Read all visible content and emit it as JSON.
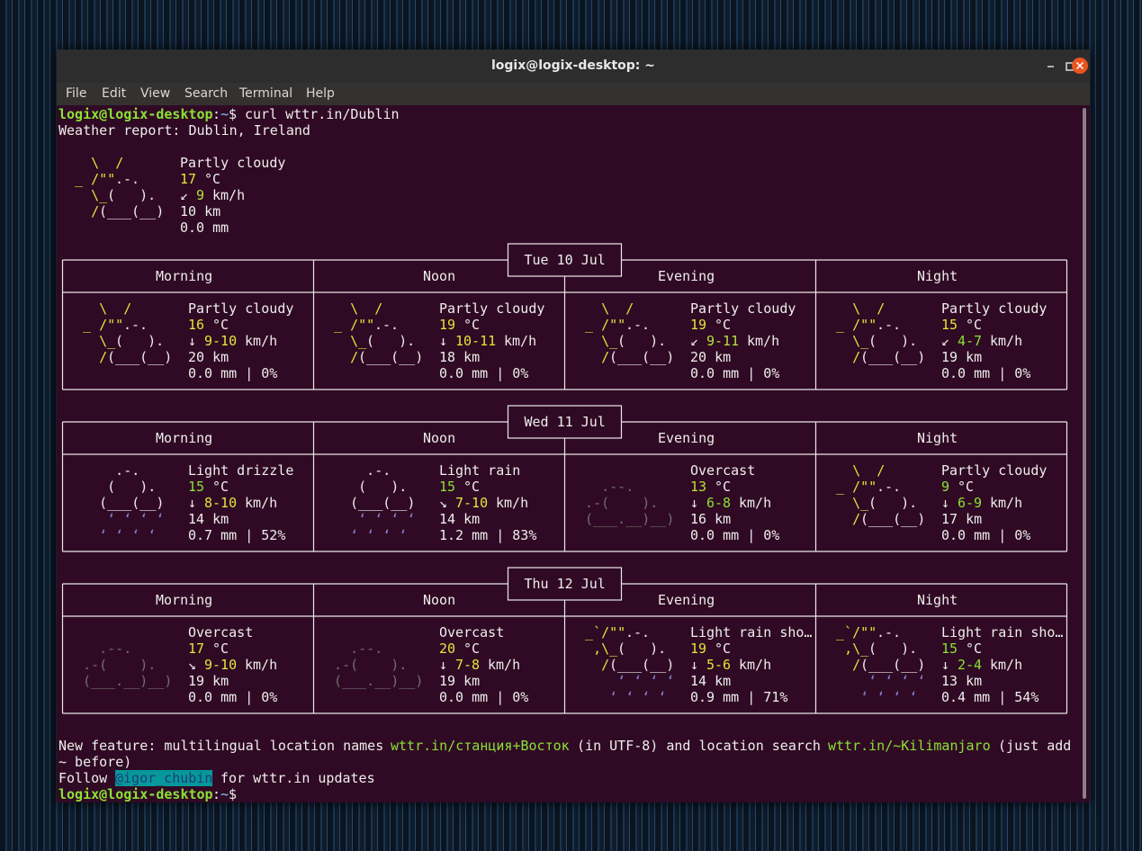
{
  "window": {
    "title": "logix@logix-desktop: ~",
    "menu": [
      "File",
      "Edit",
      "View",
      "Search",
      "Terminal",
      "Help"
    ]
  },
  "terminal": {
    "command_line": {
      "user_host": "logix@logix-desktop",
      "separator": ":",
      "path": "~",
      "symbol": "$",
      "command": "curl wttr.in/Dublin"
    },
    "report_title": "Weather report: Dublin, Ireland",
    "current": {
      "art": [
        [
          [
            "    \\  /",
            "#e4e43a"
          ]
        ],
        [
          [
            "  _ /\"\"",
            "#e4e43a"
          ],
          [
            ".-.",
            "#eeeeec"
          ]
        ],
        [
          [
            "    \\_",
            "#e4e43a"
          ],
          [
            "(   ).",
            "#eeeeec"
          ]
        ],
        [
          [
            "    /",
            "#e4e43a"
          ],
          [
            "(___(__)",
            "#eeeeec"
          ]
        ]
      ],
      "condition": "Partly cloudy",
      "temp": "17",
      "temp_color": "#e4e43a",
      "temp_unit": "°C",
      "wind_arrow": "↙",
      "wind": "9",
      "wind_color": "#b5e23a",
      "wind_unit": "km/h",
      "visibility": "10 km",
      "precipitation": "0.0 mm"
    },
    "days": [
      {
        "date": "Tue 10 Jul",
        "periods": [
          {
            "name": "Morning",
            "art": [
              [
                [
                  "    \\  /",
                  "#e4e43a"
                ]
              ],
              [
                [
                  "  _ /\"\"",
                  "#e4e43a"
                ],
                [
                  ".-.",
                  "#eeeeec"
                ]
              ],
              [
                [
                  "    \\_",
                  "#e4e43a"
                ],
                [
                  "(   ).",
                  "#eeeeec"
                ]
              ],
              [
                [
                  "    /",
                  "#e4e43a"
                ],
                [
                  "(___(__)",
                  "#eeeeec"
                ]
              ]
            ],
            "condition": "Partly cloudy",
            "temp": "16",
            "temp_color": "#e4e43a",
            "temp_unit": "°C",
            "wind_arrow": "↓",
            "wind": "9-10",
            "wind_color": "#e4e43a",
            "wind_unit": "km/h",
            "visibility": "20 km",
            "precipitation": "0.0 mm | 0%"
          },
          {
            "name": "Noon",
            "art": [
              [
                [
                  "    \\  /",
                  "#e4e43a"
                ]
              ],
              [
                [
                  "  _ /\"\"",
                  "#e4e43a"
                ],
                [
                  ".-.",
                  "#eeeeec"
                ]
              ],
              [
                [
                  "    \\_",
                  "#e4e43a"
                ],
                [
                  "(   ).",
                  "#eeeeec"
                ]
              ],
              [
                [
                  "    /",
                  "#e4e43a"
                ],
                [
                  "(___(__)",
                  "#eeeeec"
                ]
              ]
            ],
            "condition": "Partly cloudy",
            "temp": "19",
            "temp_color": "#e4e43a",
            "temp_unit": "°C",
            "wind_arrow": "↓",
            "wind": "10-11",
            "wind_color": "#e4e43a",
            "wind_unit": "km/h",
            "visibility": "18 km",
            "precipitation": "0.0 mm | 0%"
          },
          {
            "name": "Evening",
            "art": [
              [
                [
                  "    \\  /",
                  "#e4e43a"
                ]
              ],
              [
                [
                  "  _ /\"\"",
                  "#e4e43a"
                ],
                [
                  ".-.",
                  "#eeeeec"
                ]
              ],
              [
                [
                  "    \\_",
                  "#e4e43a"
                ],
                [
                  "(   ).",
                  "#eeeeec"
                ]
              ],
              [
                [
                  "    /",
                  "#e4e43a"
                ],
                [
                  "(___(__)",
                  "#eeeeec"
                ]
              ]
            ],
            "condition": "Partly cloudy",
            "temp": "19",
            "temp_color": "#e4e43a",
            "temp_unit": "°C",
            "wind_arrow": "↙",
            "wind": "9-11",
            "wind_color": "#b5e23a",
            "wind_unit": "km/h",
            "visibility": "20 km",
            "precipitation": "0.0 mm | 0%"
          },
          {
            "name": "Night",
            "art": [
              [
                [
                  "    \\  /",
                  "#e4e43a"
                ]
              ],
              [
                [
                  "  _ /\"\"",
                  "#e4e43a"
                ],
                [
                  ".-.",
                  "#eeeeec"
                ]
              ],
              [
                [
                  "    \\_",
                  "#e4e43a"
                ],
                [
                  "(   ).",
                  "#eeeeec"
                ]
              ],
              [
                [
                  "    /",
                  "#e4e43a"
                ],
                [
                  "(___(__)",
                  "#eeeeec"
                ]
              ]
            ],
            "condition": "Partly cloudy",
            "temp": "15",
            "temp_color": "#e4e43a",
            "temp_unit": "°C",
            "wind_arrow": "↙",
            "wind": "4-7",
            "wind_color": "#8ae234",
            "wind_unit": "km/h",
            "visibility": "19 km",
            "precipitation": "0.0 mm | 0%"
          }
        ]
      },
      {
        "date": "Wed 11 Jul",
        "periods": [
          {
            "name": "Morning",
            "art": [
              [
                [
                  "      .-.",
                  "#eeeeec"
                ]
              ],
              [
                [
                  "     (   ).",
                  "#eeeeec"
                ]
              ],
              [
                [
                  "    (___(__)",
                  "#eeeeec"
                ]
              ],
              [
                [
                  "     ‘ ‘ ‘ ‘",
                  "#8787d7"
                ]
              ],
              [
                [
                  "    ‘ ‘ ‘ ‘",
                  "#8787d7"
                ]
              ]
            ],
            "condition": "Light drizzle",
            "temp": "15",
            "temp_color": "#8ae234",
            "temp_unit": "°C",
            "wind_arrow": "↓",
            "wind": "8-10",
            "wind_color": "#e4e43a",
            "wind_unit": "km/h",
            "visibility": "14 km",
            "precipitation": "0.7 mm | 52%"
          },
          {
            "name": "Noon",
            "art": [
              [
                [
                  "      .-.",
                  "#eeeeec"
                ]
              ],
              [
                [
                  "     (   ).",
                  "#eeeeec"
                ]
              ],
              [
                [
                  "    (___(__)",
                  "#eeeeec"
                ]
              ],
              [
                [
                  "     ‘ ‘ ‘ ‘",
                  "#8787d7"
                ]
              ],
              [
                [
                  "    ‘ ‘ ‘ ‘",
                  "#8787d7"
                ]
              ]
            ],
            "condition": "Light rain",
            "temp": "15",
            "temp_color": "#8ae234",
            "temp_unit": "°C",
            "wind_arrow": "↘",
            "wind": "7-10",
            "wind_color": "#e4e43a",
            "wind_unit": "km/h",
            "visibility": "14 km",
            "precipitation": "1.2 mm | 83%"
          },
          {
            "name": "Evening",
            "art": [
              [],
              [
                [
                  "    .--.",
                  "#6f6f6f"
                ]
              ],
              [
                [
                  "  .-(    ).",
                  "#6f6f6f"
                ]
              ],
              [
                [
                  "  (___.__)__)",
                  "#6f6f6f"
                ]
              ]
            ],
            "condition": "Overcast",
            "temp": "13",
            "temp_color": "#b5e23a",
            "temp_unit": "°C",
            "wind_arrow": "↓",
            "wind": "6-8",
            "wind_color": "#8ae234",
            "wind_unit": "km/h",
            "visibility": "16 km",
            "precipitation": "0.0 mm | 0%"
          },
          {
            "name": "Night",
            "art": [
              [
                [
                  "    \\  /",
                  "#e4e43a"
                ]
              ],
              [
                [
                  "  _ /\"\"",
                  "#e4e43a"
                ],
                [
                  ".-.",
                  "#eeeeec"
                ]
              ],
              [
                [
                  "    \\_",
                  "#e4e43a"
                ],
                [
                  "(   ).",
                  "#eeeeec"
                ]
              ],
              [
                [
                  "    /",
                  "#e4e43a"
                ],
                [
                  "(___(__)",
                  "#eeeeec"
                ]
              ]
            ],
            "condition": "Partly cloudy",
            "temp": "9",
            "temp_color": "#8ae234",
            "temp_unit": "°C",
            "wind_arrow": "↓",
            "wind": "6-9",
            "wind_color": "#8ae234",
            "wind_unit": "km/h",
            "visibility": "17 km",
            "precipitation": "0.0 mm | 0%"
          }
        ]
      },
      {
        "date": "Thu 12 Jul",
        "periods": [
          {
            "name": "Morning",
            "art": [
              [],
              [
                [
                  "    .--.",
                  "#6f6f6f"
                ]
              ],
              [
                [
                  "  .-(    ).",
                  "#6f6f6f"
                ]
              ],
              [
                [
                  "  (___.__)__)",
                  "#6f6f6f"
                ]
              ]
            ],
            "condition": "Overcast",
            "temp": "17",
            "temp_color": "#e4e43a",
            "temp_unit": "°C",
            "wind_arrow": "↘",
            "wind": "9-10",
            "wind_color": "#e4e43a",
            "wind_unit": "km/h",
            "visibility": "19 km",
            "precipitation": "0.0 mm | 0%"
          },
          {
            "name": "Noon",
            "art": [
              [],
              [
                [
                  "    .--.",
                  "#6f6f6f"
                ]
              ],
              [
                [
                  "  .-(    ).",
                  "#6f6f6f"
                ]
              ],
              [
                [
                  "  (___.__)__)",
                  "#6f6f6f"
                ]
              ]
            ],
            "condition": "Overcast",
            "temp": "20",
            "temp_color": "#e4e43a",
            "temp_unit": "°C",
            "wind_arrow": "↓",
            "wind": "7-8",
            "wind_color": "#e4e43a",
            "wind_unit": "km/h",
            "visibility": "19 km",
            "precipitation": "0.0 mm | 0%"
          },
          {
            "name": "Evening",
            "art": [
              [
                [
                  "  _`/\"\"",
                  "#e4e43a"
                ],
                [
                  ".-.",
                  "#eeeeec"
                ]
              ],
              [
                [
                  "   ,\\_",
                  "#e4e43a"
                ],
                [
                  "(   ).",
                  "#eeeeec"
                ]
              ],
              [
                [
                  "    /",
                  "#e4e43a"
                ],
                [
                  "(___(__)",
                  "#eeeeec"
                ]
              ],
              [
                [
                  "      ‘ ‘ ‘ ‘",
                  "#8787d7"
                ]
              ],
              [
                [
                  "     ‘ ‘ ‘ ‘",
                  "#8787d7"
                ]
              ]
            ],
            "condition": "Light rain sho…",
            "temp": "19",
            "temp_color": "#e4e43a",
            "temp_unit": "°C",
            "wind_arrow": "↓",
            "wind": "5-6",
            "wind_color": "#e4e43a",
            "wind_unit": "km/h",
            "visibility": "14 km",
            "precipitation": "0.9 mm | 71%"
          },
          {
            "name": "Night",
            "art": [
              [
                [
                  "  _`/\"\"",
                  "#e4e43a"
                ],
                [
                  ".-.",
                  "#eeeeec"
                ]
              ],
              [
                [
                  "   ,\\_",
                  "#e4e43a"
                ],
                [
                  "(   ).",
                  "#eeeeec"
                ]
              ],
              [
                [
                  "    /",
                  "#e4e43a"
                ],
                [
                  "(___(__)",
                  "#eeeeec"
                ]
              ],
              [
                [
                  "      ‘ ‘ ‘ ‘",
                  "#8787d7"
                ]
              ],
              [
                [
                  "     ‘ ‘ ‘ ‘",
                  "#8787d7"
                ]
              ]
            ],
            "condition": "Light rain sho…",
            "temp": "15",
            "temp_color": "#8ae234",
            "temp_unit": "°C",
            "wind_arrow": "↓",
            "wind": "2-4",
            "wind_color": "#8ae234",
            "wind_unit": "km/h",
            "visibility": "13 km",
            "precipitation": "0.4 mm | 54%"
          }
        ]
      }
    ],
    "footer": {
      "lines": [
        [
          [
            "New feature: multilingual location names ",
            "#eeeeec"
          ],
          [
            "wttr.in/станция+Восток",
            "#8ae234"
          ],
          [
            " (in UTF-8) and location search ",
            "#eeeeec"
          ],
          [
            "wttr.in/~Kilimanjaro",
            "#8ae234"
          ],
          [
            " (just add",
            "#eeeeec"
          ]
        ],
        [
          [
            "~ before)",
            "#eeeeec"
          ]
        ]
      ],
      "follow": {
        "before": "Follow ",
        "handle": "@igor_chubin",
        "after": " for wttr.in updates"
      }
    },
    "final_prompt": {
      "user_host": "logix@logix-desktop",
      "separator": ":",
      "path": "~",
      "symbol": "$"
    }
  }
}
